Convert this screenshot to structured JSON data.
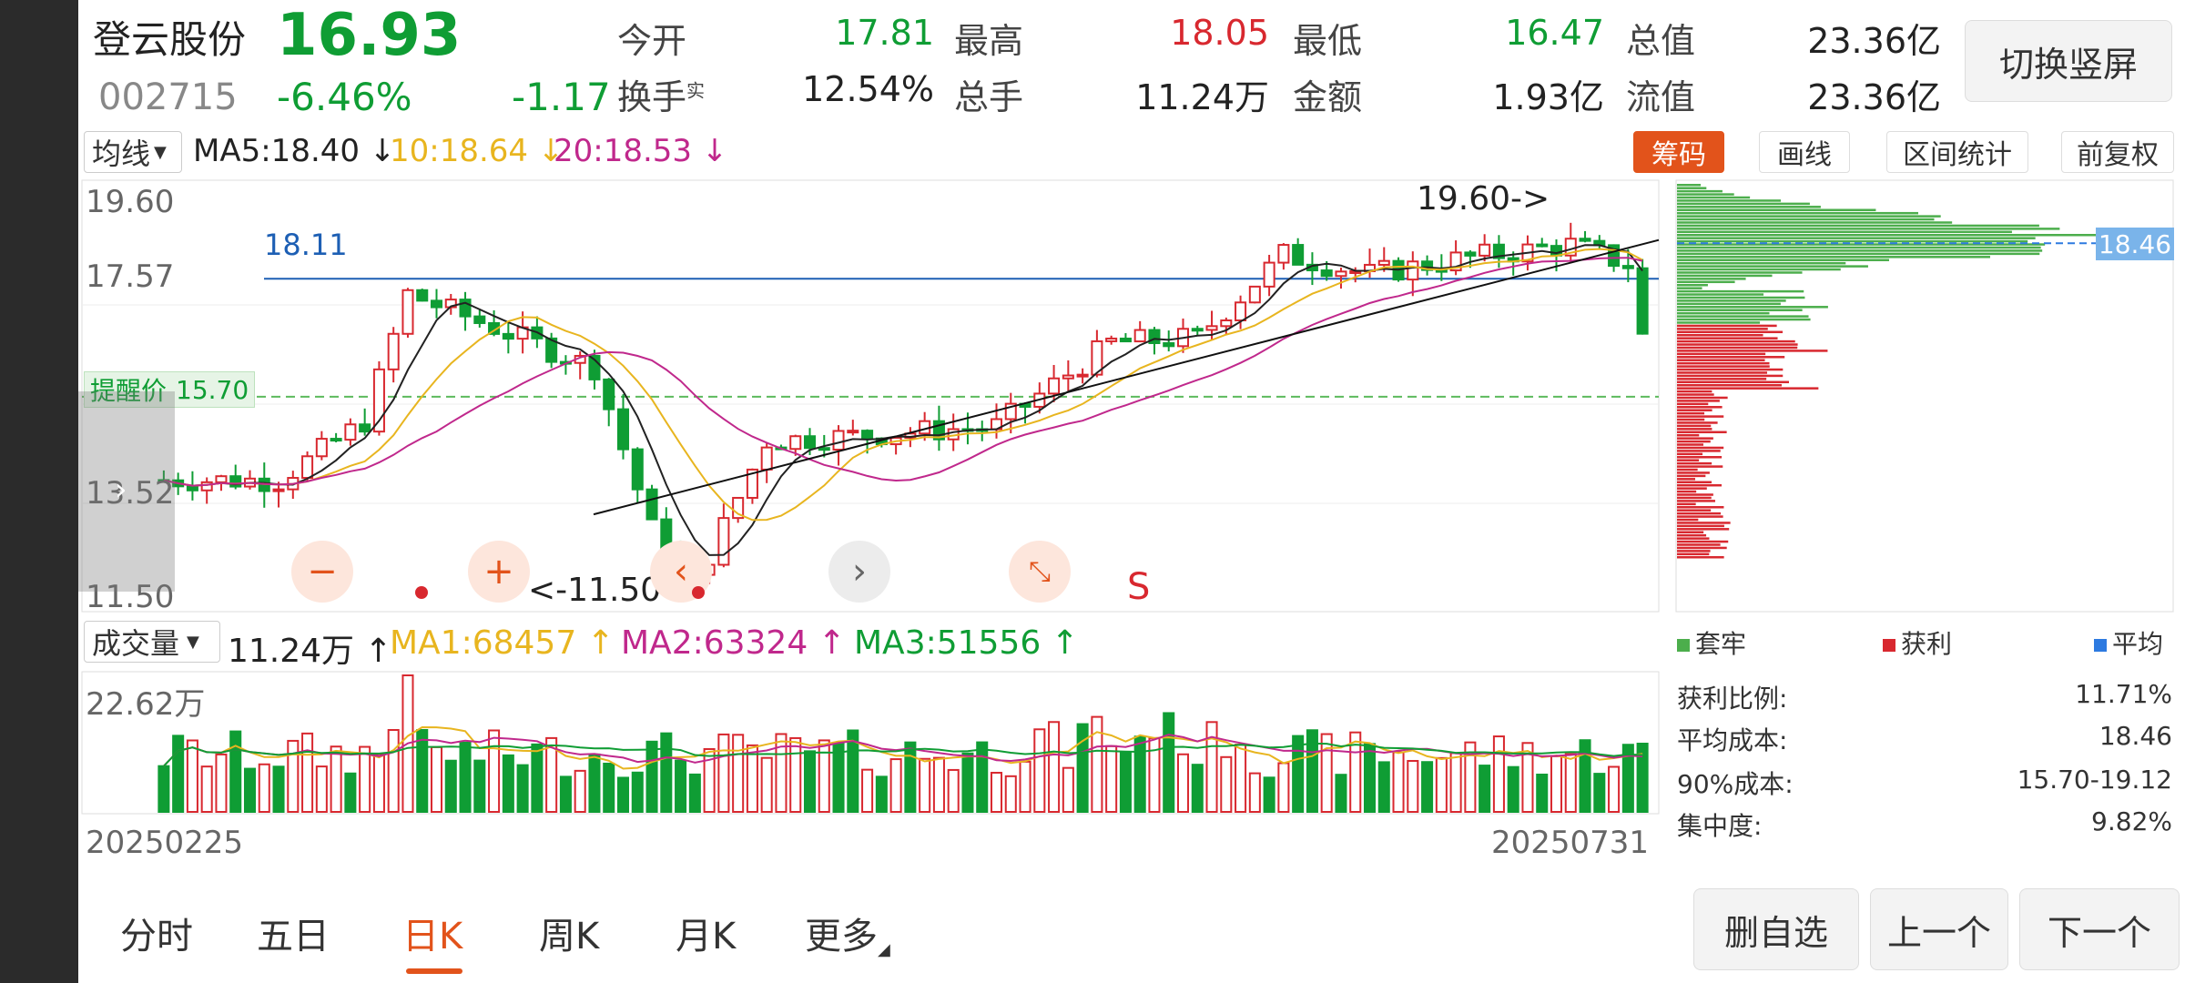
{
  "header": {
    "stock_name": "登云股份",
    "price": "16.93",
    "code": "002715",
    "change_pct": "-6.46%",
    "change_amt": "-1.17",
    "open_label": "今开",
    "open_value": "17.81",
    "high_label": "最高",
    "high_value": "18.05",
    "low_label": "最低",
    "low_value": "16.47",
    "total_mv_label": "总值",
    "total_mv_value": "23.36亿",
    "turnover_label": "换手",
    "turnover_sup": "实",
    "turnover_value": "12.54%",
    "volume_label": "总手",
    "volume_value": "11.24万",
    "amount_label": "金额",
    "amount_value": "1.93亿",
    "float_mv_label": "流值",
    "float_mv_value": "23.36亿",
    "switch_button": "切换竖屏"
  },
  "main_chart": {
    "indicator_select": "均线",
    "ma5": "MA5:18.40 ↓",
    "ma10": "10:18.64 ↓",
    "ma20": "20:18.53 ↓",
    "tags": [
      "筹码",
      "画线",
      "区间统计",
      "前复权"
    ],
    "y_top": "19.60",
    "y_2": "17.57",
    "y_4": "13.52",
    "y_bottom": "11.50",
    "hline_label": "18.11",
    "alert_label": "提醒价",
    "alert_value": "15.70",
    "high_annot": "19.60->",
    "low_annot": "<-11.50",
    "s_marker": "S",
    "cost_tag": "18.46"
  },
  "volume_chart": {
    "indicator_select": "成交量",
    "vol": "11.24万 ↑",
    "ma1": "MA1:68457 ↑",
    "ma2": "MA2:63324 ↑",
    "ma3": "MA3:51556 ↑",
    "y_max": "22.62万",
    "date_start": "20250225",
    "date_end": "20250731"
  },
  "chip_panel": {
    "legend_trapped": "套牢",
    "legend_profit": "获利",
    "legend_avg": "平均",
    "profit_ratio_label": "获利比例:",
    "profit_ratio_value": "11.71%",
    "avg_cost_label": "平均成本:",
    "avg_cost_value": "18.46",
    "cost90_label": "90%成本:",
    "cost90_value": "15.70-19.12",
    "concentration_label": "集中度:",
    "concentration_value": "9.82%"
  },
  "tabs": [
    "分时",
    "五日",
    "日K",
    "周K",
    "月K",
    "更多"
  ],
  "active_tab": "日K",
  "bottom_buttons": {
    "remove": "删自选",
    "prev": "上一个",
    "next": "下一个"
  },
  "colors": {
    "up": "#d8282f",
    "down": "#0f9d34",
    "ma5": "#222222",
    "ma10": "#e8b51f",
    "ma20": "#c0288c",
    "accent": "#e2531b"
  },
  "chart_data": {
    "type": "candlestick",
    "x_start": "20250225",
    "x_end": "20250731",
    "ylim": [
      11.5,
      19.6
    ],
    "last_close": 16.93,
    "high": 19.6,
    "low": 11.5,
    "reference_lines": [
      18.11,
      15.7
    ]
  }
}
